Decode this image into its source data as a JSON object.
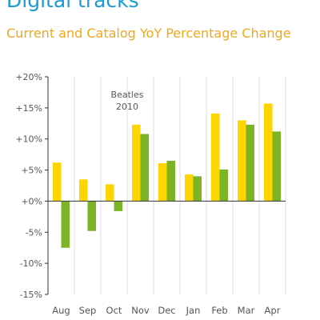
{
  "chart_data": {
    "type": "bar",
    "title": "Digital tracks",
    "subtitle": "Current and Catalog YoY Percentage Change",
    "categories": [
      "Aug",
      "Sep",
      "Oct",
      "Nov",
      "Dec",
      "Jan",
      "Feb",
      "Mar",
      "Apr"
    ],
    "series": [
      {
        "values": [
          6.2,
          3.5,
          2.7,
          12.3,
          6.1,
          4.3,
          14.1,
          13.0,
          15.7
        ],
        "color": "#ffd500"
      },
      {
        "values": [
          -7.5,
          -4.8,
          -1.6,
          10.8,
          6.5,
          4.0,
          5.1,
          12.3,
          11.2
        ],
        "color": "#7bb526"
      }
    ],
    "ylim": [
      -15,
      20
    ],
    "yticks": [
      -15,
      -10,
      -5,
      0,
      5,
      10,
      15,
      20
    ],
    "ytick_labels": [
      "-15%",
      "-10%",
      "-5%",
      "+0%",
      "+5%",
      "+10%",
      "+15%",
      "+20%"
    ],
    "annotation": {
      "lines": [
        "Beatles",
        "2010"
      ],
      "category": "Oct"
    },
    "grid": "vertical",
    "colors": {
      "title": "#1b9ad6",
      "subtitle": "#f2a71b",
      "axis": "#333333",
      "grid": "#dddddd",
      "text": "#555555"
    }
  }
}
